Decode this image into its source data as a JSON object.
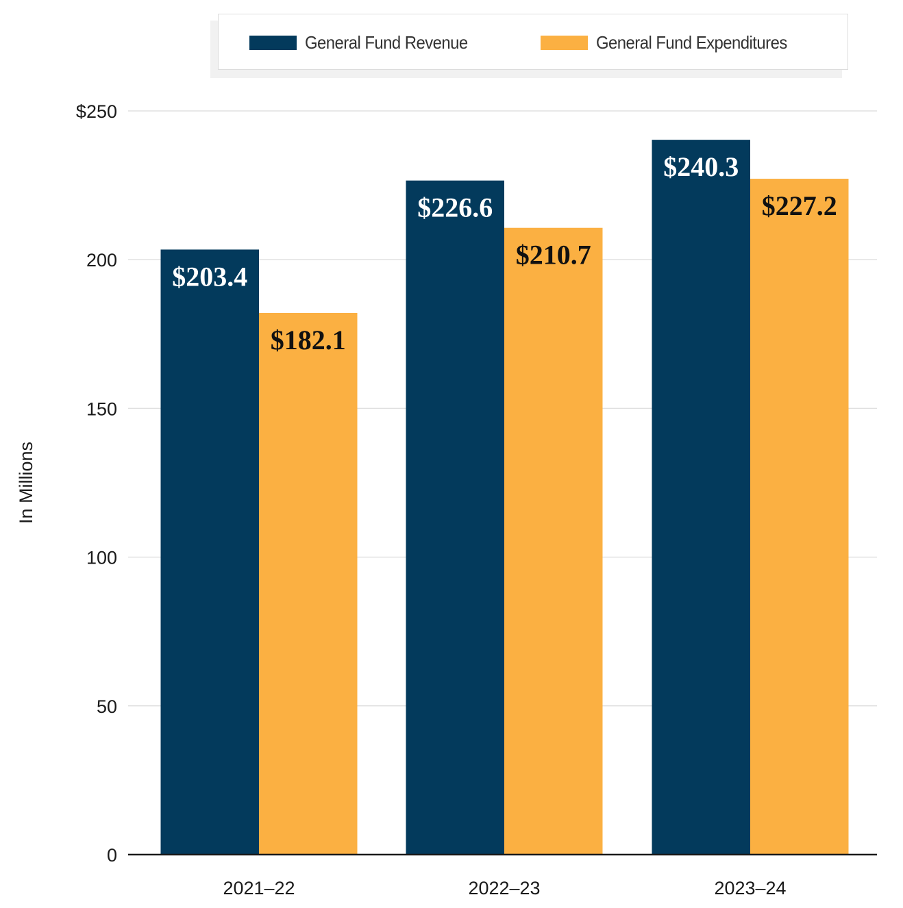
{
  "chart_data": {
    "type": "bar",
    "title": "",
    "xlabel": "",
    "ylabel": "In Millions",
    "ylim": [
      0,
      250
    ],
    "y_ticks": [
      0,
      50,
      100,
      150,
      200,
      250
    ],
    "y_tick_labels": [
      "0",
      "50",
      "100",
      "150",
      "200",
      "$250"
    ],
    "grid": true,
    "legend_position": "top-center",
    "categories": [
      "2021–22",
      "2022–23",
      "2023–24"
    ],
    "series": [
      {
        "name": "General Fund Revenue",
        "color": "#033a5c",
        "label_color": "#ffffff",
        "values": [
          203.4,
          226.6,
          240.3
        ],
        "data_labels": [
          "$203.4",
          "$226.6",
          "$240.3"
        ]
      },
      {
        "name": "General Fund Expenditures",
        "color": "#fbb042",
        "label_color": "#111111",
        "values": [
          182.1,
          210.7,
          227.2
        ],
        "data_labels": [
          "$182.1",
          "$210.7",
          "$227.2"
        ]
      }
    ],
    "colors": {
      "gridline": "#e0e0e0",
      "axis": "#1a1a1a"
    }
  }
}
